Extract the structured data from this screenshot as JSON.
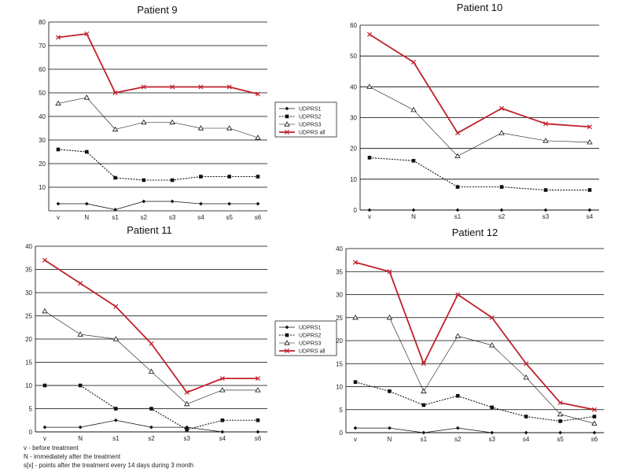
{
  "colors": {
    "line": "#111111",
    "total": "#c0202a",
    "grid": "#000000"
  },
  "legend_entries": [
    "UDPRS1",
    "UDPRS2",
    "UDPRS3",
    "UDPRS all"
  ],
  "footnotes": [
    "v - before treatment",
    "N - immediately after the treatment",
    "s[x] - points after the treatment every 14 days during 3 month"
  ],
  "chart_data": [
    {
      "type": "line",
      "title": "Patient 9",
      "categories": [
        "v",
        "N",
        "s1",
        "s2",
        "s3",
        "s4",
        "s5",
        "s6"
      ],
      "ylim": [
        0,
        80
      ],
      "yticks": [
        10,
        20,
        30,
        40,
        50,
        60,
        70,
        80
      ],
      "series": [
        {
          "name": "UDPRS1",
          "values": [
            3,
            3,
            0.5,
            4,
            4,
            3,
            3,
            3
          ]
        },
        {
          "name": "UDPRS2",
          "values": [
            26,
            25,
            14,
            13,
            13,
            14.5,
            14.5,
            14.5
          ]
        },
        {
          "name": "UDPRS3",
          "values": [
            45.5,
            48,
            34.5,
            37.5,
            37.5,
            35,
            35,
            31
          ]
        },
        {
          "name": "UDPRS all",
          "values": [
            73.5,
            75,
            50,
            52.5,
            52.5,
            52.5,
            52.5,
            49.5
          ]
        }
      ],
      "legend": "right"
    },
    {
      "type": "line",
      "title": "Patient 10",
      "categories": [
        "v",
        "N",
        "s1",
        "s2",
        "s3",
        "s4"
      ],
      "ylim": [
        0,
        60
      ],
      "yticks": [
        0,
        10,
        20,
        30,
        40,
        50,
        60
      ],
      "series": [
        {
          "name": "UDPRS1",
          "values": [
            0,
            0,
            0,
            0,
            0,
            0
          ]
        },
        {
          "name": "UDPRS2",
          "values": [
            17,
            16,
            7.5,
            7.5,
            6.5,
            6.5
          ]
        },
        {
          "name": "UDPRS3",
          "values": [
            40,
            32.5,
            17.5,
            25,
            22.5,
            22
          ]
        },
        {
          "name": "UDPRS all",
          "values": [
            57,
            48,
            25,
            33,
            28,
            27
          ]
        }
      ],
      "legend": "none"
    },
    {
      "type": "line",
      "title": "Patient 11",
      "categories": [
        "v",
        "N",
        "s1",
        "s2",
        "s3",
        "s4",
        "s6"
      ],
      "ylim": [
        0,
        40
      ],
      "yticks": [
        0,
        5,
        10,
        15,
        20,
        25,
        30,
        35,
        40
      ],
      "series": [
        {
          "name": "UDPRS1",
          "values": [
            1,
            1,
            2.5,
            1,
            1,
            0,
            0
          ]
        },
        {
          "name": "UDPRS2",
          "values": [
            10,
            10,
            5,
            5,
            0.5,
            2.5,
            2.5
          ]
        },
        {
          "name": "UDPRS3",
          "values": [
            26,
            21,
            20,
            13,
            6,
            9,
            9
          ]
        },
        {
          "name": "UDPRS all",
          "values": [
            37,
            32,
            27,
            19,
            8.5,
            11.5,
            11.5
          ]
        }
      ],
      "legend": "right"
    },
    {
      "type": "line",
      "title": "Patient 12",
      "categories": [
        "v",
        "N",
        "s1",
        "s2",
        "s3",
        "s4",
        "s5",
        "s6"
      ],
      "ylim": [
        0,
        40
      ],
      "yticks": [
        0,
        5,
        10,
        15,
        20,
        25,
        30,
        35,
        40
      ],
      "series": [
        {
          "name": "UDPRS1",
          "values": [
            1,
            1,
            0,
            1,
            0,
            0,
            0,
            0
          ]
        },
        {
          "name": "UDPRS2",
          "values": [
            11,
            9,
            6,
            8,
            5.5,
            3.5,
            2.5,
            3.5
          ]
        },
        {
          "name": "UDPRS3",
          "values": [
            25,
            25,
            9,
            21,
            19,
            12,
            4,
            2
          ]
        },
        {
          "name": "UDPRS all",
          "values": [
            37,
            35,
            15,
            30,
            25,
            15,
            6.5,
            5
          ]
        }
      ],
      "legend": "none"
    }
  ]
}
